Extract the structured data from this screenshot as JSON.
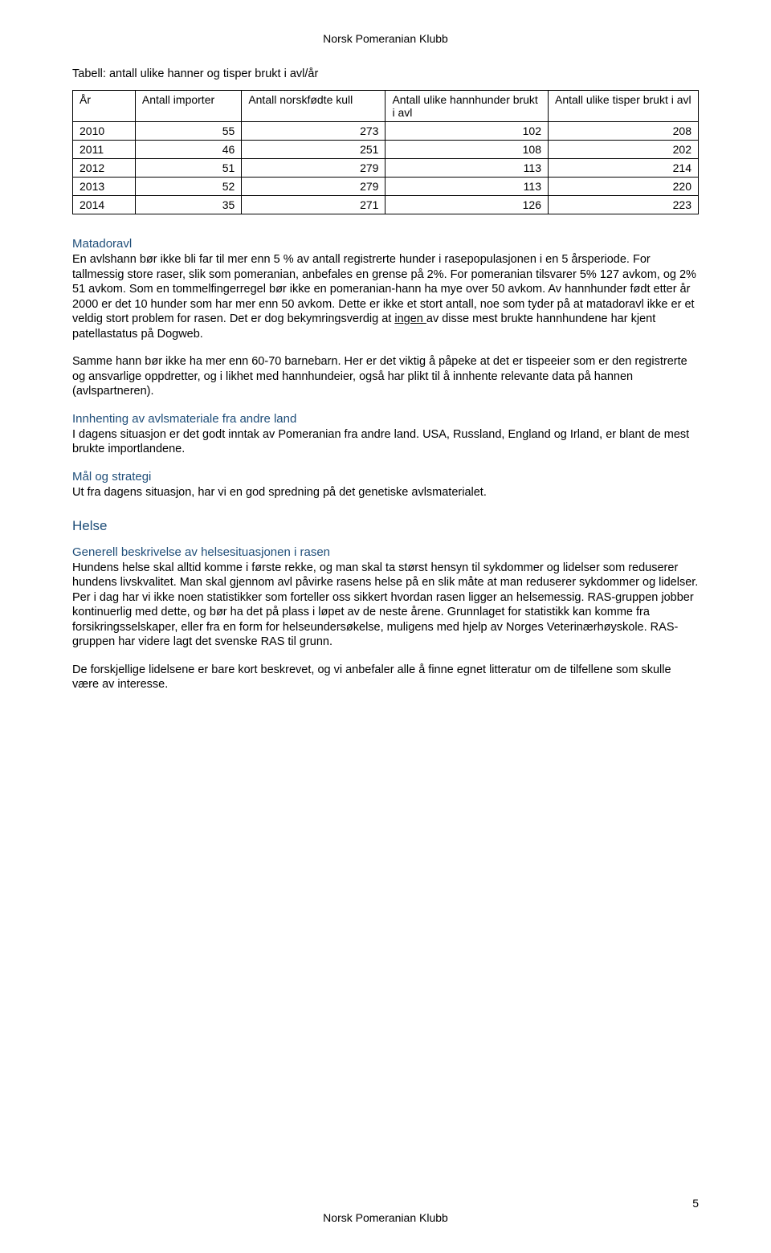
{
  "header": {
    "org": "Norsk Pomeranian Klubb"
  },
  "table": {
    "title": "Tabell: antall ulike hanner og tisper brukt i avl/år",
    "columns": [
      "År",
      "Antall importer",
      "Antall norskfødte kull",
      "Antall ulike hannhunder brukt i avl",
      "Antall ulike tisper brukt i avl"
    ],
    "rows": [
      [
        "2010",
        "55",
        "273",
        "102",
        "208"
      ],
      [
        "2011",
        "46",
        "251",
        "108",
        "202"
      ],
      [
        "2012",
        "51",
        "279",
        "113",
        "214"
      ],
      [
        "2013",
        "52",
        "279",
        "113",
        "220"
      ],
      [
        "2014",
        "35",
        "271",
        "126",
        "223"
      ]
    ],
    "col_widths": [
      "10%",
      "17%",
      "23%",
      "26%",
      "24%"
    ]
  },
  "sections": {
    "matadoravl": {
      "heading": "Matadoravl",
      "p1a": "En avlshann bør ikke bli far til mer enn 5 % av antall registrerte hunder i rasepopulasjonen i en 5 årsperiode. For tallmessig store raser, slik som pomeranian, anbefales en grense på 2%. For pomeranian tilsvarer 5% 127 avkom, og 2% 51 avkom. Som en tommelfingerregel bør ikke en pomeranian-hann ha mye over 50 avkom. Av hannhunder født etter år 2000 er det 10 hunder som har mer enn 50 avkom. Dette er ikke et stort antall, noe som tyder på at matadoravl ikke er et veldig stort problem for rasen. Det er dog bekymringsverdig at ",
      "p1u": "ingen ",
      "p1b": "av disse mest brukte hannhundene har kjent patellastatus på Dogweb.",
      "p2": "Samme hann bør ikke ha mer enn 60-70 barnebarn. Her er det viktig å påpeke at det er tispeeier som er den registrerte og ansvarlige oppdretter, og i likhet med hannhundeier, også har plikt til å innhente relevante data på hannen (avlspartneren)."
    },
    "innhenting": {
      "heading": "Innhenting av avlsmateriale fra andre land",
      "p1": "I dagens situasjon er det godt inntak av Pomeranian fra andre land. USA, Russland, England og Irland, er blant de mest brukte importlandene."
    },
    "mal": {
      "heading": "Mål og strategi",
      "p1": "Ut fra dagens situasjon, har vi en god spredning på det genetiske avlsmaterialet."
    },
    "helse": {
      "heading": "Helse"
    },
    "generell": {
      "heading": "Generell beskrivelse av helsesituasjonen i rasen",
      "p1": "Hundens helse skal alltid komme i første rekke, og man skal ta størst hensyn til sykdommer og lidelser som reduserer hundens livskvalitet. Man skal gjennom avl påvirke rasens helse på en slik måte at man reduserer sykdommer og lidelser. Per i dag har vi ikke noen statistikker som forteller oss sikkert hvordan rasen ligger an helsemessig. RAS-gruppen jobber kontinuerlig med dette, og bør ha det på plass i løpet av de neste årene. Grunnlaget for statistikk kan komme fra forsikringsselskaper, eller fra en form for helseundersøkelse, muligens med hjelp av Norges Veterinærhøyskole. RAS-gruppen har videre lagt det svenske RAS til grunn.",
      "p2": "De forskjellige lidelsene er bare kort beskrevet, og vi anbefaler alle å finne egnet litteratur om de tilfellene som skulle være av interesse."
    }
  },
  "footer": {
    "org": "Norsk Pomeranian Klubb",
    "page": "5"
  },
  "styles": {
    "heading_color": "#1f4e79",
    "text_color": "#000000",
    "background": "#ffffff",
    "body_fontsize": 14.5,
    "heading_fontsize": 15,
    "big_heading_fontsize": 17
  }
}
